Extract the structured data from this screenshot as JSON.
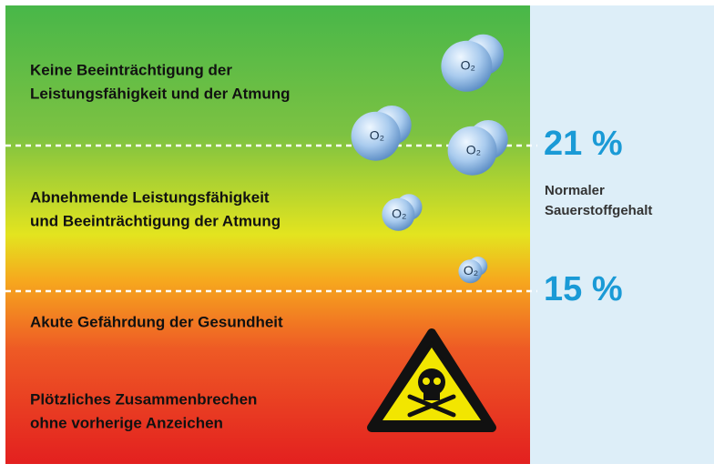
{
  "zones": [
    {
      "lines": [
        "Keine Beeinträchtigung der",
        "Leistungsfähigkeit und der Atmung"
      ]
    },
    {
      "lines": [
        "Abnehmende Leistungsfähigkeit",
        "und Beeinträchtigung der Atmung"
      ]
    },
    {
      "lines": [
        "Akute Gefährdung der Gesundheit"
      ]
    },
    {
      "lines": [
        "Plötzliches Zusammenbrechen",
        "ohne vorherige Anzeichen"
      ]
    }
  ],
  "levels": [
    {
      "label": "21 %",
      "description": [
        "Normaler",
        "Sauerstoffgehalt"
      ]
    },
    {
      "label": "15 %"
    }
  ],
  "bubbles": [
    {
      "label": "O₂"
    },
    {
      "label": "O₂"
    },
    {
      "label": "O₂"
    },
    {
      "label": "O₂"
    },
    {
      "label": "O₂"
    }
  ]
}
